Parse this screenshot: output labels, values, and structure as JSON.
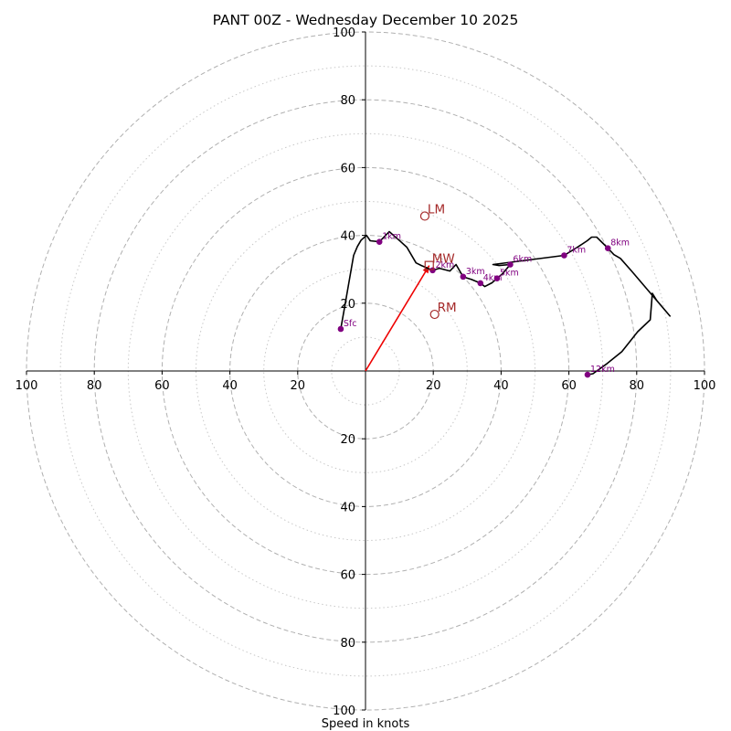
{
  "chart_data": {
    "type": "line",
    "title": "PANT 00Z - Wednesday December 10 2025",
    "xlabel": "Speed in knots",
    "ylabel": "",
    "xlim": [
      -100,
      100
    ],
    "ylim": [
      -100,
      100
    ],
    "rings_major": [
      20,
      40,
      60,
      80,
      100
    ],
    "rings_minor": [
      10,
      30,
      50,
      70,
      90
    ],
    "x_ticks": [
      {
        "value": -100,
        "label": "100"
      },
      {
        "value": -80,
        "label": "80"
      },
      {
        "value": -60,
        "label": "60"
      },
      {
        "value": -40,
        "label": "40"
      },
      {
        "value": -20,
        "label": "20"
      },
      {
        "value": 20,
        "label": "20"
      },
      {
        "value": 40,
        "label": "40"
      },
      {
        "value": 60,
        "label": "60"
      },
      {
        "value": 80,
        "label": "80"
      },
      {
        "value": 100,
        "label": "100"
      }
    ],
    "y_ticks": [
      {
        "value": 100,
        "label": "100"
      },
      {
        "value": 80,
        "label": "80"
      },
      {
        "value": 60,
        "label": "60"
      },
      {
        "value": 40,
        "label": "40"
      },
      {
        "value": 20,
        "label": "20"
      },
      {
        "value": -20,
        "label": "20"
      },
      {
        "value": -40,
        "label": "40"
      },
      {
        "value": -60,
        "label": "60"
      },
      {
        "value": -80,
        "label": "80"
      },
      {
        "value": -100,
        "label": "100"
      }
    ],
    "hodograph_trace": [
      [
        -7.3,
        12.4
      ],
      [
        -6.2,
        18.6
      ],
      [
        -3.5,
        34.1
      ],
      [
        -2.4,
        36.7
      ],
      [
        -1.3,
        38.6
      ],
      [
        0.3,
        40.0
      ],
      [
        1.4,
        38.4
      ],
      [
        4.1,
        38.1
      ],
      [
        7.0,
        41.1
      ],
      [
        10.0,
        38.5
      ],
      [
        12.2,
        36.5
      ],
      [
        14.9,
        31.9
      ],
      [
        16.5,
        31.1
      ],
      [
        19.8,
        29.7
      ],
      [
        21.8,
        30.3
      ],
      [
        24.9,
        29.5
      ],
      [
        26.7,
        31.4
      ],
      [
        28.8,
        27.8
      ],
      [
        31.2,
        27.0
      ],
      [
        33.9,
        25.9
      ],
      [
        35.2,
        24.9
      ],
      [
        37.3,
        26.0
      ],
      [
        38.8,
        27.3
      ],
      [
        40.5,
        28.8
      ],
      [
        42.7,
        31.4
      ],
      [
        39.4,
        31.1
      ],
      [
        37.6,
        31.4
      ],
      [
        58.6,
        34.1
      ],
      [
        62.5,
        36.5
      ],
      [
        65.4,
        38.4
      ],
      [
        66.7,
        39.5
      ],
      [
        68.2,
        39.5
      ],
      [
        70.1,
        37.6
      ],
      [
        71.5,
        36.2
      ],
      [
        73.3,
        34.3
      ],
      [
        75.2,
        33.2
      ],
      [
        78.5,
        29.5
      ],
      [
        89.8,
        16.2
      ],
      [
        85.9,
        20.8
      ],
      [
        84.6,
        22.9
      ],
      [
        84.0,
        15.1
      ],
      [
        80.3,
        11.6
      ],
      [
        75.6,
        5.7
      ],
      [
        71.3,
        2.2
      ],
      [
        67.1,
        -0.8
      ],
      [
        65.5,
        -1.1
      ]
    ],
    "height_markers": [
      {
        "label": "Sfc",
        "u": -7.3,
        "v": 12.4
      },
      {
        "label": "1km",
        "u": 4.1,
        "v": 38.1
      },
      {
        "label": "2km",
        "u": 19.8,
        "v": 29.7
      },
      {
        "label": "3km",
        "u": 28.8,
        "v": 27.8
      },
      {
        "label": "4km",
        "u": 33.9,
        "v": 25.9
      },
      {
        "label": "5km",
        "u": 38.8,
        "v": 27.3
      },
      {
        "label": "6km",
        "u": 42.7,
        "v": 31.4
      },
      {
        "label": "7km",
        "u": 58.6,
        "v": 34.1
      },
      {
        "label": "8km",
        "u": 71.5,
        "v": 36.2
      },
      {
        "label": "12km",
        "u": 65.5,
        "v": -1.1
      }
    ],
    "storm_motion": [
      {
        "label": "LM",
        "u": 17.5,
        "v": 45.7,
        "marker": "circle"
      },
      {
        "label": "MW",
        "u": 18.8,
        "v": 31.1,
        "marker": "square"
      },
      {
        "label": "RM",
        "u": 20.4,
        "v": 16.7,
        "marker": "circle"
      }
    ],
    "mean_wind_vector": {
      "u": 18.8,
      "v": 31.1
    },
    "colors": {
      "ring_major": "#b0b0b0",
      "ring_minor": "#c8c8c8",
      "trace": "#000000",
      "height_marker": "#800080",
      "storm_motion": "#a52a2a",
      "vector": "#ee0000"
    }
  }
}
